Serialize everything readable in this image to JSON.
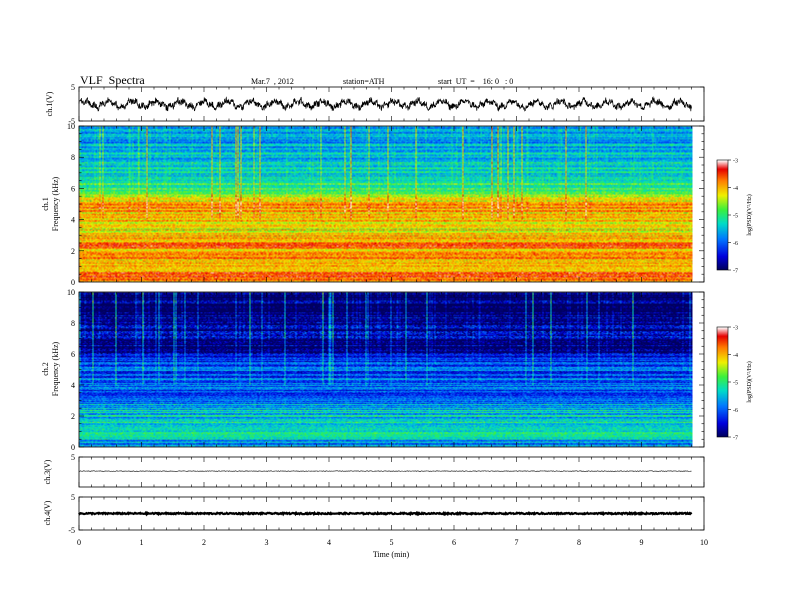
{
  "header": {
    "title": "VLF  Spectra",
    "date": "Mar.7  , 2012",
    "station": "station=ATH",
    "start": "start  UT  =    16: 0   : 0"
  },
  "colors": {
    "spec_low": "#000060",
    "spec_mid": "#00d2b0",
    "spec_high": "#ff2200",
    "spec_top": "#ffffff",
    "trace": "#000000"
  },
  "chart_data": [
    {
      "id": "ch1-waveform",
      "type": "line",
      "ylabel": "ch.1(V)",
      "yticks": [
        "5",
        "-5"
      ],
      "ylim": [
        -5,
        5
      ],
      "xlim": [
        0,
        10
      ],
      "data_end": 9.8,
      "description_values": {
        "amplitude_approx": [
          -1.5,
          1.5
        ]
      }
    },
    {
      "id": "ch1-spectrogram",
      "type": "heatmap",
      "ylabel_channel": "ch.1",
      "ylabel": "Frequency  (kHz)",
      "yticks": [
        "10",
        "8",
        "6",
        "4",
        "2",
        "0"
      ],
      "ylim": [
        0,
        10
      ],
      "xlim": [
        0,
        10
      ],
      "data_end": 9.8,
      "colorbar": {
        "label": "log(PSD)(V²/Hz)",
        "ticks": [
          "-3",
          "-4",
          "-5",
          "-6",
          "-7"
        ],
        "range": [
          -7,
          -3
        ]
      },
      "bands_logpsd": [
        [
          0,
          -3.6
        ],
        [
          0.5,
          -3.8
        ],
        [
          1,
          -4.0
        ],
        [
          2,
          -3.9
        ],
        [
          2.5,
          -3.8
        ],
        [
          3,
          -4.1
        ],
        [
          3.5,
          -4.3
        ],
        [
          4,
          -4.2
        ],
        [
          4.5,
          -4.0
        ],
        [
          5,
          -3.8
        ],
        [
          5.5,
          -4.6
        ],
        [
          6,
          -4.8
        ],
        [
          6.5,
          -5.2
        ],
        [
          7,
          -5.4
        ],
        [
          8,
          -5.5
        ],
        [
          9,
          -5.7
        ],
        [
          10,
          -5.8
        ]
      ]
    },
    {
      "id": "ch2-spectrogram",
      "type": "heatmap",
      "ylabel_channel": "ch.2",
      "ylabel": "Frequency  (kHz)",
      "yticks": [
        "10",
        "8",
        "6",
        "4",
        "2",
        "0"
      ],
      "ylim": [
        0,
        10
      ],
      "xlim": [
        0,
        10
      ],
      "data_end": 9.8,
      "colorbar": {
        "label": "log(PSD)(V²/Hz)",
        "ticks": [
          "-3",
          "-4",
          "-5",
          "-6",
          "-7"
        ],
        "range": [
          -7,
          -3
        ]
      },
      "bands_logpsd": [
        [
          0,
          -6.0
        ],
        [
          0.5,
          -5.5
        ],
        [
          1,
          -5.3
        ],
        [
          2,
          -5.4
        ],
        [
          3,
          -5.8
        ],
        [
          3.5,
          -6.4
        ],
        [
          4,
          -5.9
        ],
        [
          5,
          -6.1
        ],
        [
          6,
          -6.4
        ],
        [
          6.5,
          -6.8
        ],
        [
          7,
          -6.5
        ],
        [
          8,
          -6.6
        ],
        [
          9,
          -6.8
        ],
        [
          10,
          -6.9
        ]
      ]
    },
    {
      "id": "ch3-waveform",
      "type": "line",
      "ylabel": "ch.3(V)",
      "yticks": [
        "5"
      ],
      "ylim": [
        -5,
        5
      ],
      "xlim": [
        0,
        10
      ],
      "data_end": 9.8,
      "description_values": {
        "amplitude_approx": [
          -0.1,
          0.1
        ],
        "offset": 0.3
      }
    },
    {
      "id": "ch4-waveform",
      "type": "line",
      "ylabel": "ch.4(V)",
      "yticks": [
        "5",
        "-5"
      ],
      "ylim": [
        -5,
        5
      ],
      "xlim": [
        0,
        10
      ],
      "data_end": 9.8,
      "description_values": {
        "amplitude_approx": [
          -0.2,
          0.2
        ],
        "offset": 0.0
      }
    }
  ],
  "xaxis": {
    "label": "Time  (min)",
    "ticks": [
      "0",
      "1",
      "2",
      "3",
      "4",
      "5",
      "6",
      "7",
      "8",
      "9",
      "10"
    ],
    "xlim": [
      0,
      10
    ]
  }
}
